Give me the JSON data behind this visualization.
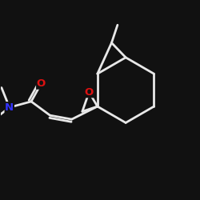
{
  "bg_color": "#111111",
  "bond_color": "#e8e8e8",
  "atom_N_color": "#3333ff",
  "atom_O_color": "#dd1111",
  "line_width": 2.0,
  "font_size": 9.5,
  "xlim": [
    0,
    10
  ],
  "ylim": [
    0,
    10
  ]
}
